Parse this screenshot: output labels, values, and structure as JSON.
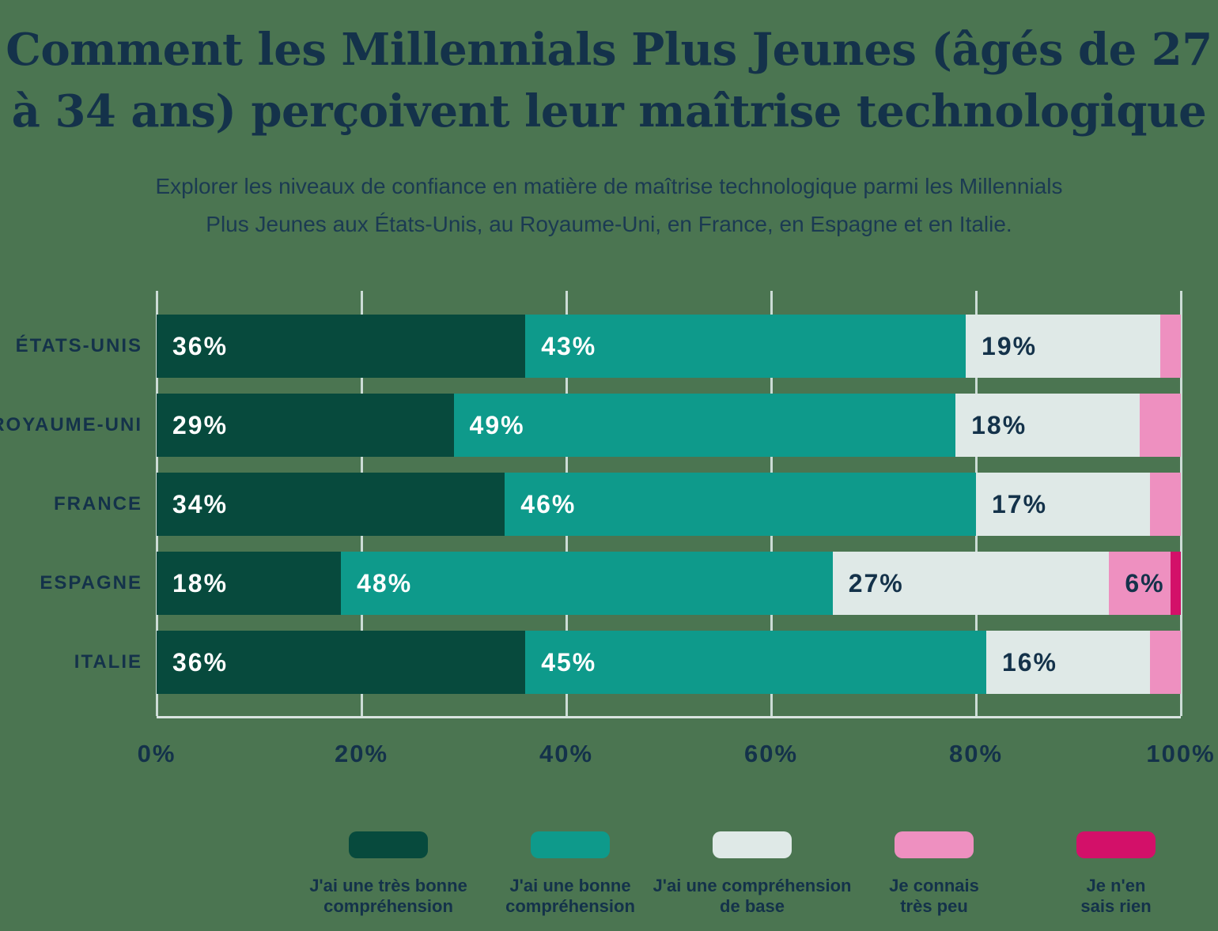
{
  "background_color": "#4b7551",
  "text_color": "#14324a",
  "title": {
    "line1": "Comment les Millennials Plus Jeunes (âgés de 27",
    "line2": "à 34 ans) perçoivent leur maîtrise technologique"
  },
  "subtitle": {
    "line1": "Explorer les niveaux de confiance en matière de maîtrise technologique parmi les Millennials",
    "line2": "Plus Jeunes aux États-Unis, au Royaume-Uni, en France, en Espagne et en Italie."
  },
  "chart_data": {
    "type": "bar",
    "orientation": "horizontal",
    "stacked": true,
    "title": "Comment les Millennials Plus Jeunes (âgés de 27 à 34 ans) perçoivent leur maîtrise technologique",
    "categories": [
      "ÉTATS-UNIS",
      "ROYAUME-UNI",
      "FRANCE",
      "ESPAGNE",
      "ITALIE"
    ],
    "series": [
      {
        "name": "J'ai une très bonne compréhension",
        "label_lines": [
          "J'ai une très bonne",
          "compréhension"
        ],
        "color": "#074a3d",
        "value_label_color": "#ffffff",
        "values": [
          36,
          29,
          34,
          18,
          36
        ]
      },
      {
        "name": "J'ai une bonne compréhension",
        "label_lines": [
          "J'ai une bonne",
          "compréhension"
        ],
        "color": "#0e9a8b",
        "value_label_color": "#ffffff",
        "values": [
          43,
          49,
          46,
          48,
          45
        ]
      },
      {
        "name": "J'ai une compréhension de base",
        "label_lines": [
          "J'ai une compréhension",
          "de base"
        ],
        "color": "#dfe9e7",
        "value_label_color": "#14324a",
        "values": [
          19,
          18,
          17,
          27,
          16
        ]
      },
      {
        "name": "Je connais très peu",
        "label_lines": [
          "Je connais",
          "très peu"
        ],
        "color": "#ee90c0",
        "value_label_color": "#14324a",
        "values": [
          2,
          4,
          3,
          6,
          3
        ]
      },
      {
        "name": "Je n'en sais rien",
        "label_lines": [
          "Je n'en",
          "sais rien"
        ],
        "color": "#d31069",
        "value_label_color": "#14324a",
        "values": [
          0,
          0,
          0,
          1,
          0
        ]
      }
    ],
    "x_tick_values": [
      0,
      20,
      40,
      60,
      80,
      100
    ],
    "x_tick_labels": [
      "0%",
      "20%",
      "40%",
      "60%",
      "80%",
      "100%"
    ],
    "xlim": [
      0,
      100
    ],
    "grid": true,
    "legend_position": "bottom",
    "value_labels_note": "percent labels shown inside segments of 6% or more"
  },
  "layout_colors": {
    "gridline": "#ccdcd6",
    "axis_line": "#d9e4e0"
  }
}
